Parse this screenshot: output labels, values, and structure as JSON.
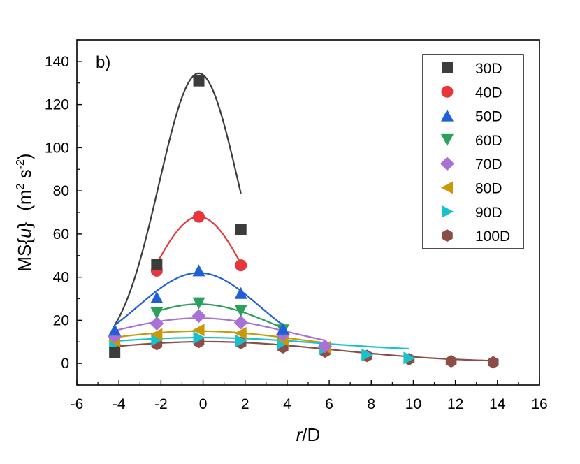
{
  "chart_data": {
    "type": "scatter",
    "panel_label": "b)",
    "xlabel": {
      "italic": "r",
      "rest": "/D"
    },
    "ylabel": {
      "prefix": "MS{",
      "italic": "u",
      "suffix": "}",
      "units_open": "(m",
      "sup1": "2",
      "mid": " s",
      "sup2": "-2",
      "units_close": ")"
    },
    "xlim": [
      -6,
      16
    ],
    "ylim": [
      -10,
      150
    ],
    "xticks": [
      -6,
      -4,
      -2,
      0,
      2,
      4,
      6,
      8,
      10,
      12,
      14,
      16
    ],
    "yticks": [
      0,
      20,
      40,
      60,
      80,
      100,
      120,
      140
    ],
    "legend_position": "top-right",
    "series": [
      {
        "name": "30D",
        "marker": "square",
        "color": "#3c3c3c",
        "fit": [
          131,
          -0.2,
          1.9,
          3.5
        ],
        "x": [
          -4.2,
          -2.2,
          -0.2,
          1.8
        ],
        "y": [
          5,
          46,
          131,
          62
        ]
      },
      {
        "name": "40D",
        "marker": "circle",
        "color": "#e8373a",
        "fit": [
          66.5,
          -0.2,
          2.25,
          1.5
        ],
        "x": [
          -2.2,
          -0.2,
          1.8
        ],
        "y": [
          43,
          68,
          45.5
        ]
      },
      {
        "name": "50D",
        "marker": "triangle-up",
        "color": "#1f5fd8",
        "fit": [
          39.5,
          -0.2,
          2.9,
          2.5
        ],
        "x": [
          -4.2,
          -2.2,
          -0.2,
          1.8,
          3.8
        ],
        "y": [
          15.5,
          30.5,
          43,
          32.5,
          16
        ]
      },
      {
        "name": "60D",
        "marker": "triangle-down",
        "color": "#2aa05a",
        "fit": [
          24,
          -0.2,
          3.6,
          3.5
        ],
        "x": [
          -2.2,
          -0.2,
          1.8,
          3.8
        ],
        "y": [
          23.5,
          28,
          24.5,
          15.5
        ]
      },
      {
        "name": "70D",
        "marker": "diamond",
        "color": "#a970d8",
        "fit": [
          16.5,
          -0.2,
          4.3,
          4.5
        ],
        "x": [
          -4.2,
          -2.2,
          -0.2,
          1.8,
          3.8,
          5.8
        ],
        "y": [
          12.5,
          18.5,
          22,
          19,
          13.5,
          8
        ]
      },
      {
        "name": "80D",
        "marker": "triangle-left",
        "color": "#c89a08",
        "fit": [
          10,
          -0.2,
          4.8,
          5
        ],
        "x": [
          -4.2,
          -2.2,
          -0.2,
          1.8,
          3.8,
          5.8
        ],
        "y": [
          10.5,
          13.5,
          15.5,
          14,
          11,
          7.5
        ]
      },
      {
        "name": "90D",
        "marker": "triangle-right",
        "color": "#17c2cf",
        "fit": [
          6.5,
          0,
          5.5,
          5.5
        ],
        "x": [
          -4.2,
          -2.2,
          -0.2,
          1.8,
          3.8,
          5.8,
          7.8,
          9.8
        ],
        "y": [
          9,
          11,
          12,
          10.5,
          9.5,
          7,
          4,
          2.5
        ]
      },
      {
        "name": "100D",
        "marker": "hexagon",
        "color": "#8b4d45",
        "fit": [
          9.6,
          0.2,
          6.0,
          0.5
        ],
        "x": [
          -4.2,
          -2.2,
          -0.2,
          1.8,
          3.8,
          5.8,
          7.8,
          9.8,
          11.8,
          13.8
        ],
        "y": [
          7.5,
          9,
          10,
          9.5,
          7.5,
          5.5,
          3.5,
          2,
          1,
          0.5
        ]
      }
    ]
  }
}
